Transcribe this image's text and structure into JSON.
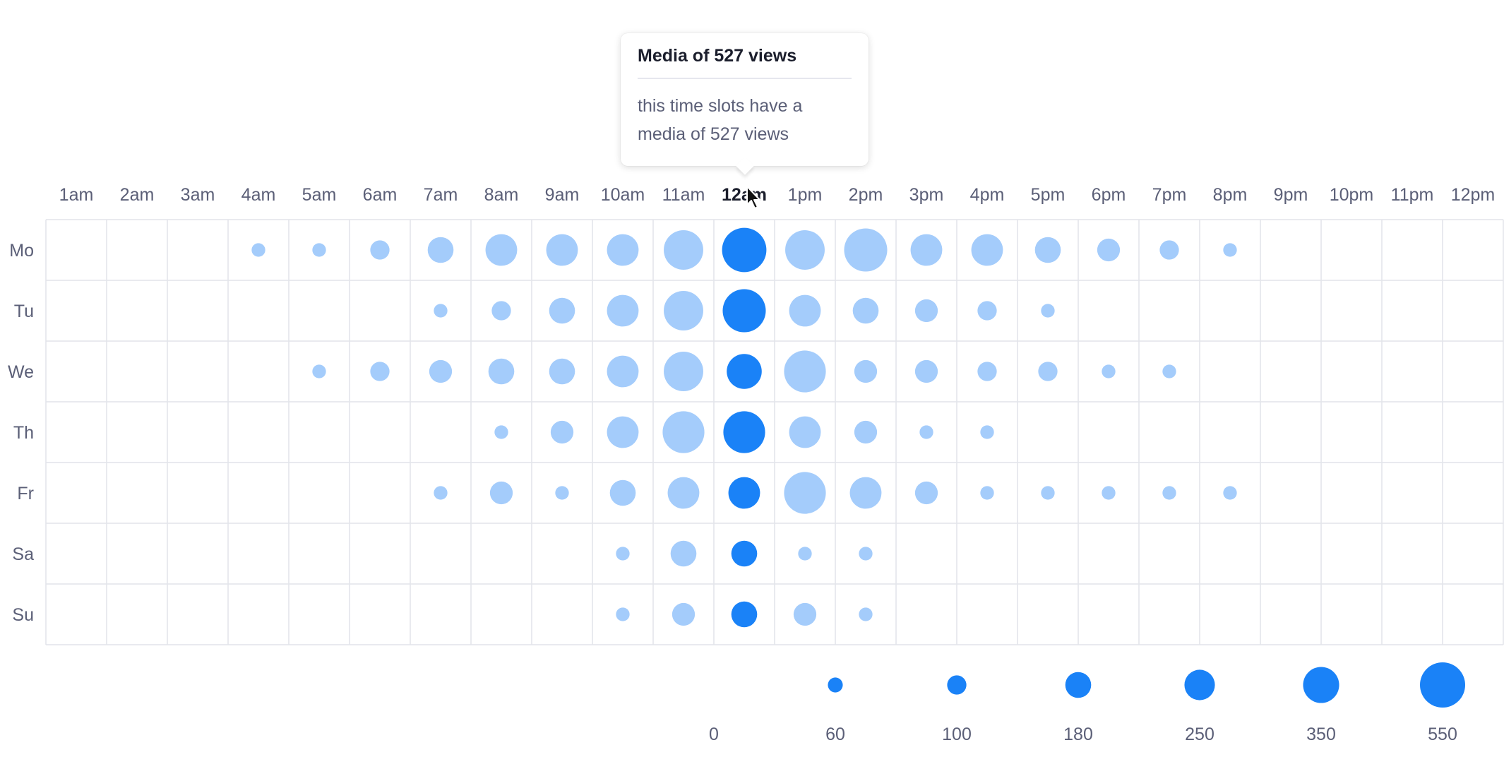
{
  "chart_data": {
    "type": "bubble-heatmap",
    "hours": [
      "1am",
      "2am",
      "3am",
      "4am",
      "5am",
      "6am",
      "7am",
      "8am",
      "9am",
      "10am",
      "11am",
      "12am",
      "1pm",
      "2pm",
      "3pm",
      "4pm",
      "5pm",
      "6pm",
      "7pm",
      "8pm",
      "9pm",
      "10pm",
      "11pm",
      "12pm"
    ],
    "days": [
      "Mo",
      "Tu",
      "We",
      "Th",
      "Fr",
      "Sa",
      "Su"
    ],
    "highlighted_hour": "12am",
    "values": [
      [
        0,
        0,
        0,
        50,
        50,
        100,
        180,
        270,
        270,
        270,
        420,
        530,
        420,
        500,
        270,
        270,
        180,
        140,
        100,
        50,
        0,
        0,
        0,
        0
      ],
      [
        0,
        0,
        0,
        0,
        0,
        0,
        50,
        100,
        180,
        270,
        420,
        500,
        270,
        180,
        140,
        100,
        50,
        0,
        0,
        0,
        0,
        0,
        0,
        0
      ],
      [
        0,
        0,
        0,
        0,
        50,
        100,
        140,
        180,
        180,
        270,
        420,
        330,
        470,
        140,
        140,
        100,
        100,
        50,
        50,
        0,
        0,
        0,
        0,
        0
      ],
      [
        0,
        0,
        0,
        0,
        0,
        0,
        0,
        50,
        140,
        270,
        470,
        470,
        270,
        140,
        50,
        50,
        0,
        0,
        0,
        0,
        0,
        0,
        0,
        0
      ],
      [
        0,
        0,
        0,
        0,
        0,
        0,
        50,
        140,
        50,
        180,
        270,
        270,
        470,
        270,
        140,
        50,
        50,
        50,
        50,
        50,
        0,
        0,
        0,
        0
      ],
      [
        0,
        0,
        0,
        0,
        0,
        0,
        0,
        0,
        0,
        50,
        180,
        180,
        50,
        50,
        0,
        0,
        0,
        0,
        0,
        0,
        0,
        0,
        0,
        0
      ],
      [
        0,
        0,
        0,
        0,
        0,
        0,
        0,
        0,
        0,
        50,
        140,
        180,
        140,
        50,
        0,
        0,
        0,
        0,
        0,
        0,
        0,
        0,
        0,
        0
      ]
    ],
    "legend": [
      0,
      60,
      100,
      180,
      250,
      350,
      550
    ],
    "colors": {
      "bubble": "#a4ccfb",
      "bubble_highlight": "#1a82f7",
      "grid": "#e2e4ea"
    }
  },
  "tooltip": {
    "title": "Media of 527 views",
    "body": "this time slots have a media of 527 views"
  }
}
